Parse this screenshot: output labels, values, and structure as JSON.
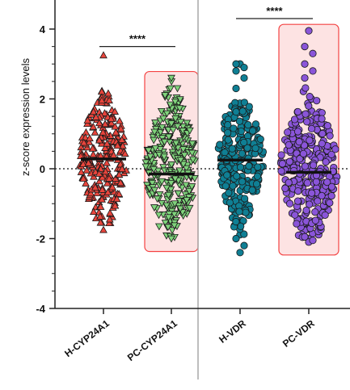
{
  "chart_data": {
    "type": "scatter",
    "subtype": "violin-dot-plot",
    "ylabel": "z-score expression levels",
    "ylim": [
      -4,
      4
    ],
    "yticks": [
      4,
      2,
      0,
      -2,
      -4
    ],
    "yticklabels": [
      "4",
      "2",
      "0",
      "-2",
      "-4"
    ],
    "reference_line": {
      "y": 0,
      "style": "dotted"
    },
    "categories": [
      "H-CYP24A1",
      "PC-CYP24A1",
      "H-VDR",
      "PC-VDR"
    ],
    "category_labels": [
      "H-CYP24A1",
      "PC-CYP24A1",
      "H-VDR",
      "PC-VDR"
    ],
    "series": [
      {
        "category": "H-CYP24A1",
        "marker": "triangle-up",
        "color": "#e8453c",
        "n": 260,
        "mean": 0.28,
        "min": -1.75,
        "max": 3.25,
        "upper_body": 2.35,
        "lower_body": -1.65,
        "peak_y": 0.3,
        "highlighted": false
      },
      {
        "category": "PC-CYP24A1",
        "marker": "triangle-down",
        "color": "#7fd27b",
        "n": 300,
        "mean": -0.15,
        "min": -2.0,
        "max": 2.6,
        "upper_body": 2.6,
        "lower_body": -2.0,
        "peak_y": 0.0,
        "highlighted": true
      },
      {
        "category": "H-VDR",
        "marker": "circle",
        "color": "#0f7f94",
        "n": 250,
        "mean": 0.25,
        "min": -2.4,
        "max": 3.0,
        "upper_body": 2.1,
        "lower_body": -2.0,
        "peak_y": 0.3,
        "highlighted": false
      },
      {
        "category": "PC-VDR",
        "marker": "circle",
        "color": "#8a55d9",
        "n": 320,
        "mean": -0.1,
        "min": -2.1,
        "max": 3.95,
        "upper_body": 2.4,
        "lower_body": -2.1,
        "peak_y": 0.0,
        "highlighted": true
      }
    ],
    "significance": [
      {
        "from": "H-CYP24A1",
        "to": "PC-CYP24A1",
        "y": 3.5,
        "label": "****"
      },
      {
        "from": "H-VDR",
        "to": "PC-VDR",
        "y": 4.3,
        "label": "****"
      }
    ],
    "highlight_color": "#f44343",
    "grid": false,
    "legend": "none"
  }
}
